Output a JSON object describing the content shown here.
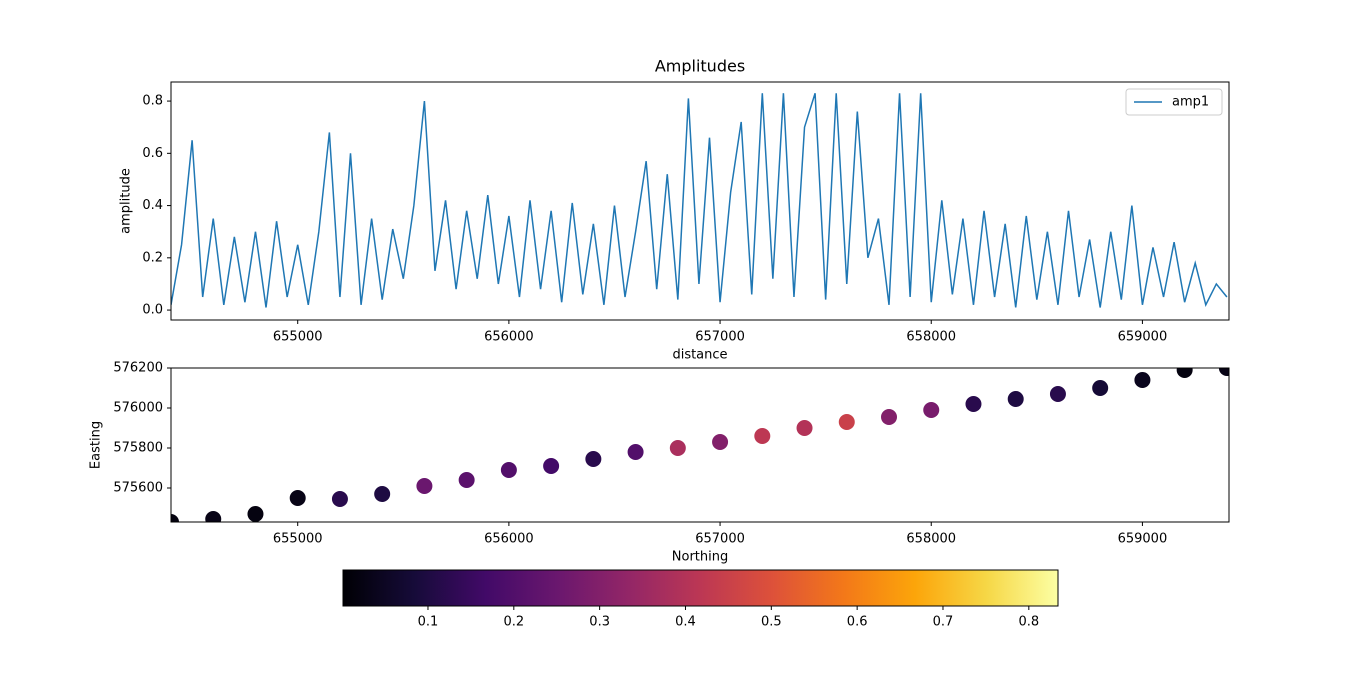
{
  "chart_data": [
    {
      "type": "line",
      "title": "Amplitudes",
      "xlabel": "distance",
      "ylabel": "amplitude",
      "x": [
        654400,
        654450,
        654500,
        654550,
        654600,
        654650,
        654700,
        654750,
        654800,
        654850,
        654900,
        654950,
        655000,
        655050,
        655100,
        655150,
        655200,
        655250,
        655300,
        655350,
        655400,
        655450,
        655500,
        655550,
        655600,
        655650,
        655700,
        655750,
        655800,
        655850,
        655900,
        655950,
        656000,
        656050,
        656100,
        656150,
        656200,
        656250,
        656300,
        656350,
        656400,
        656450,
        656500,
        656550,
        656600,
        656650,
        656700,
        656750,
        656800,
        656850,
        656900,
        656950,
        657000,
        657050,
        657100,
        657150,
        657200,
        657250,
        657300,
        657350,
        657400,
        657450,
        657500,
        657550,
        657600,
        657650,
        657700,
        657750,
        657800,
        657850,
        657900,
        657950,
        658000,
        658050,
        658100,
        658150,
        658200,
        658250,
        658300,
        658350,
        658400,
        658450,
        658500,
        658550,
        658600,
        658650,
        658700,
        658750,
        658800,
        658850,
        658900,
        658950,
        659000,
        659050,
        659100,
        659150,
        659200,
        659250,
        659300,
        659350,
        659400
      ],
      "series": [
        {
          "name": "amp1",
          "color": "#1f77b4",
          "values": [
            0.02,
            0.25,
            0.65,
            0.05,
            0.35,
            0.02,
            0.28,
            0.03,
            0.3,
            0.01,
            0.34,
            0.05,
            0.25,
            0.02,
            0.3,
            0.68,
            0.05,
            0.6,
            0.02,
            0.35,
            0.04,
            0.31,
            0.12,
            0.4,
            0.8,
            0.15,
            0.42,
            0.08,
            0.38,
            0.12,
            0.44,
            0.1,
            0.36,
            0.05,
            0.42,
            0.08,
            0.38,
            0.03,
            0.41,
            0.06,
            0.33,
            0.02,
            0.4,
            0.05,
            0.3,
            0.57,
            0.08,
            0.52,
            0.04,
            0.81,
            0.1,
            0.66,
            0.03,
            0.45,
            0.72,
            0.06,
            0.83,
            0.12,
            0.83,
            0.05,
            0.7,
            0.83,
            0.04,
            0.83,
            0.1,
            0.76,
            0.2,
            0.35,
            0.02,
            0.83,
            0.05,
            0.83,
            0.03,
            0.42,
            0.06,
            0.35,
            0.02,
            0.38,
            0.05,
            0.33,
            0.01,
            0.36,
            0.04,
            0.3,
            0.02,
            0.38,
            0.05,
            0.27,
            0.01,
            0.3,
            0.04,
            0.4,
            0.02,
            0.24,
            0.05,
            0.26,
            0.03,
            0.18,
            0.02,
            0.1,
            0.05
          ]
        }
      ],
      "xlim": [
        654400,
        659410
      ],
      "xticks": [
        655000,
        656000,
        657000,
        658000,
        659000
      ],
      "ylim": [
        -0.038,
        0.873
      ],
      "yticks": [
        {
          "value": 0,
          "label": "0.0"
        },
        0.2,
        0.4,
        0.6,
        0.8
      ],
      "legend": "upper right"
    },
    {
      "type": "scatter",
      "xlabel": "Northing",
      "ylabel": "Easting",
      "x": [
        654400,
        654600,
        654800,
        655000,
        655200,
        655400,
        655600,
        655800,
        656000,
        656200,
        656400,
        656600,
        656800,
        657000,
        657200,
        657400,
        657600,
        657800,
        658000,
        658200,
        658400,
        658600,
        658800,
        659000,
        659200,
        659400
      ],
      "y": [
        575430,
        575445,
        575470,
        575550,
        575545,
        575570,
        575610,
        575640,
        575690,
        575710,
        575745,
        575780,
        575800,
        575830,
        575860,
        575900,
        575930,
        575955,
        575990,
        576020,
        576045,
        576070,
        576100,
        576140,
        576190,
        576200
      ],
      "color_values": [
        0.02,
        0.03,
        0.02,
        0.03,
        0.12,
        0.1,
        0.25,
        0.22,
        0.2,
        0.17,
        0.12,
        0.2,
        0.38,
        0.3,
        0.42,
        0.4,
        0.45,
        0.3,
        0.28,
        0.12,
        0.1,
        0.12,
        0.08,
        0.04,
        0.02,
        0.03
      ],
      "xlim": [
        654400,
        659410
      ],
      "xticks": [
        655000,
        656000,
        657000,
        658000,
        659000
      ],
      "ylim": [
        575430,
        576200
      ],
      "yticks": [
        575600,
        575800,
        576000,
        576200
      ],
      "colormap": "inferno",
      "colorbar": {
        "lim": [
          0.001,
          0.834
        ],
        "ticks": [
          0.1,
          0.2,
          0.3,
          0.4,
          0.5,
          0.6,
          0.7,
          0.8
        ]
      }
    }
  ]
}
